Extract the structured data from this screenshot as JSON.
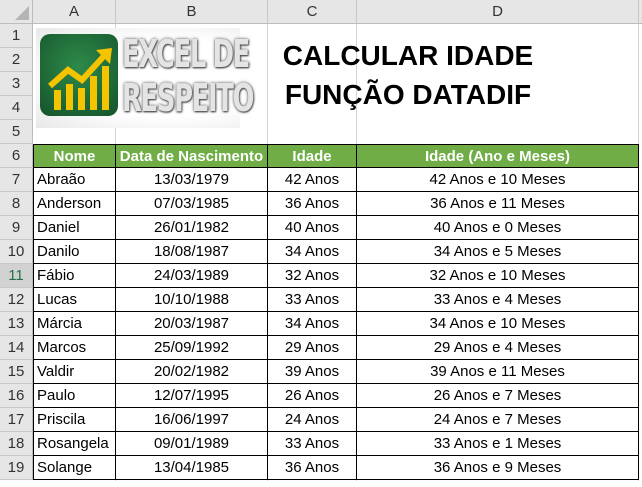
{
  "columns": [
    "A",
    "B",
    "C",
    "D"
  ],
  "rows": [
    "1",
    "2",
    "3",
    "4",
    "5",
    "6",
    "7",
    "8",
    "9",
    "10",
    "11",
    "12",
    "13",
    "14",
    "15",
    "16",
    "17",
    "18",
    "19"
  ],
  "selected_row": "11",
  "logo": {
    "text_line1": "EXCEL DE",
    "text_line2": "RESPEITO",
    "badge_color": "#1f6f3a",
    "arrow_color": "#f5c400"
  },
  "title": {
    "line1": "CALCULAR IDADE",
    "line2": "FUNÇÃO DATADIF"
  },
  "header_color": "#70ad47",
  "table": {
    "headers": [
      "Nome",
      "Data de Nascimento",
      "Idade",
      "Idade (Ano e Meses)"
    ],
    "rows": [
      [
        "Abraão",
        "13/03/1979",
        "42 Anos",
        "42 Anos e 10 Meses"
      ],
      [
        "Anderson",
        "07/03/1985",
        "36 Anos",
        "36 Anos e 11 Meses"
      ],
      [
        "Daniel",
        "26/01/1982",
        "40 Anos",
        "40 Anos e 0 Meses"
      ],
      [
        "Danilo",
        "18/08/1987",
        "34 Anos",
        "34 Anos e 5 Meses"
      ],
      [
        "Fábio",
        "24/03/1989",
        "32 Anos",
        "32 Anos e 10 Meses"
      ],
      [
        "Lucas",
        "10/10/1988",
        "33 Anos",
        "33 Anos e 4 Meses"
      ],
      [
        "Márcia",
        "20/03/1987",
        "34 Anos",
        "34 Anos e 10 Meses"
      ],
      [
        "Marcos",
        "25/09/1992",
        "29 Anos",
        "29 Anos e 4 Meses"
      ],
      [
        "Valdir",
        "20/02/1982",
        "39 Anos",
        "39 Anos e 11 Meses"
      ],
      [
        "Paulo",
        "12/07/1995",
        "26 Anos",
        "26 Anos e 7 Meses"
      ],
      [
        "Priscila",
        "16/06/1997",
        "24 Anos",
        "24 Anos e 7 Meses"
      ],
      [
        "Rosangela",
        "09/01/1989",
        "33 Anos",
        "33 Anos e 1 Meses"
      ],
      [
        "Solange",
        "13/04/1985",
        "36 Anos",
        "36 Anos e 9 Meses"
      ]
    ]
  }
}
